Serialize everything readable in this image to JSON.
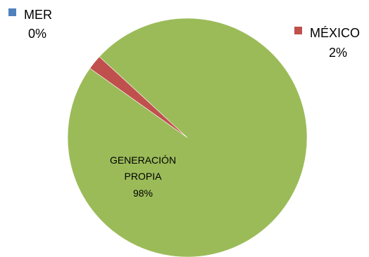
{
  "chart_data": {
    "type": "pie",
    "slices": [
      {
        "name": "MER",
        "value": 0,
        "percent_label": "0%",
        "color": "#4f81bd"
      },
      {
        "name": "MÉXICO",
        "value": 2,
        "percent_label": "2%",
        "color": "#c0504d"
      },
      {
        "name": "GENERACIÓN PROPIA",
        "name_lines": [
          "GENERACIÓN",
          "PROPIA"
        ],
        "value": 98,
        "percent_label": "98%",
        "color": "#9bbb59"
      }
    ],
    "title": "",
    "legend": "none"
  }
}
